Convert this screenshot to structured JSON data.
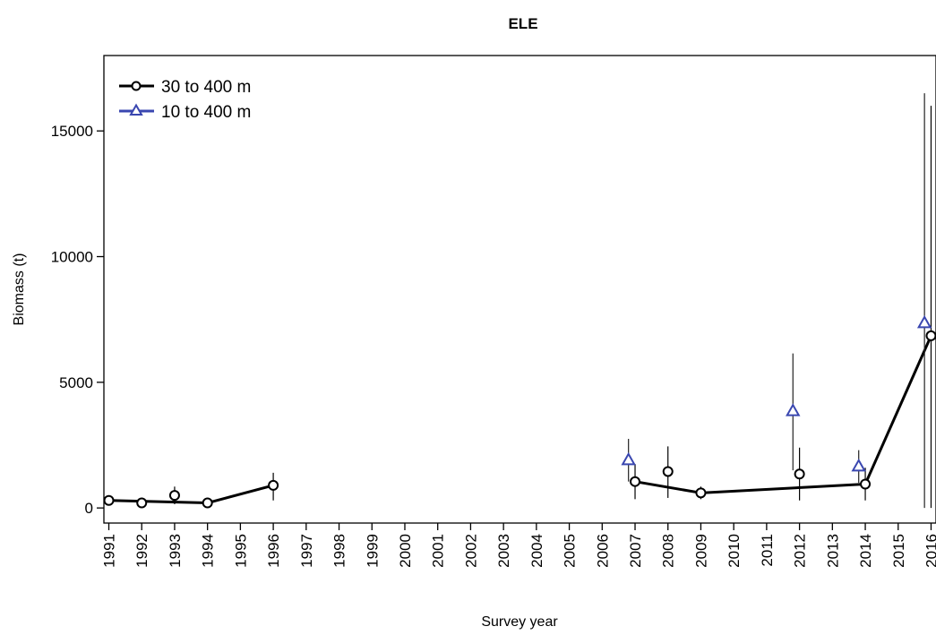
{
  "chart_data": {
    "type": "line",
    "title": "ELE",
    "xlabel": "Survey year",
    "ylabel": "Biomass (t)",
    "ylim": [
      -600,
      18000
    ],
    "xlim": [
      1990.85,
      2016.15
    ],
    "yticks": [
      0,
      5000,
      10000,
      15000
    ],
    "ytick_labels": [
      "0",
      "5000",
      "10000",
      "15000"
    ],
    "xticks": [
      1991,
      1992,
      1993,
      1994,
      1995,
      1996,
      1997,
      1998,
      1999,
      2000,
      2001,
      2002,
      2003,
      2004,
      2005,
      2006,
      2007,
      2008,
      2009,
      2010,
      2011,
      2012,
      2013,
      2014,
      2015,
      2016
    ],
    "xtick_labels": [
      "1991",
      "1992",
      "1993",
      "1994",
      "1995",
      "1996",
      "1997",
      "1998",
      "1999",
      "2000",
      "2001",
      "2002",
      "2003",
      "2004",
      "2005",
      "2006",
      "2007",
      "2008",
      "2009",
      "2010",
      "2011",
      "2012",
      "2013",
      "2014",
      "2015",
      "2016"
    ],
    "grid": false,
    "legend_position": "top-left",
    "series": [
      {
        "name": "30 to 400 m",
        "color": "#000000",
        "marker": "circle",
        "segments": [
          [
            1991,
            1994
          ],
          [
            1994,
            1996
          ],
          [
            2007,
            2009
          ],
          [
            2009,
            2014
          ],
          [
            2014,
            2016
          ]
        ],
        "points": [
          {
            "x": 1991,
            "y": 300,
            "lo": 100,
            "hi": 500
          },
          {
            "x": 1992,
            "y": 200,
            "lo": 100,
            "hi": 300
          },
          {
            "x": 1993,
            "y": 500,
            "lo": 150,
            "hi": 850
          },
          {
            "x": 1994,
            "y": 200,
            "lo": 100,
            "hi": 300
          },
          {
            "x": 1996,
            "y": 900,
            "lo": 300,
            "hi": 1400
          },
          {
            "x": 2007,
            "y": 1050,
            "lo": 350,
            "hi": 1750
          },
          {
            "x": 2008,
            "y": 1450,
            "lo": 400,
            "hi": 2450
          },
          {
            "x": 2009,
            "y": 600,
            "lo": 350,
            "hi": 850
          },
          {
            "x": 2012,
            "y": 1350,
            "lo": 300,
            "hi": 2400
          },
          {
            "x": 2014,
            "y": 950,
            "lo": 300,
            "hi": 1600
          },
          {
            "x": 2016,
            "y": 6850,
            "lo": 0,
            "hi": 16000
          }
        ]
      },
      {
        "name": "10 to 400 m",
        "color": "#3a47b0",
        "marker": "triangle",
        "offset": -0.2,
        "points": [
          {
            "x": 2007,
            "y": 1900,
            "lo": 1050,
            "hi": 2750
          },
          {
            "x": 2012,
            "y": 3850,
            "lo": 1500,
            "hi": 6150
          },
          {
            "x": 2014,
            "y": 1650,
            "lo": 1000,
            "hi": 2300
          },
          {
            "x": 2016,
            "y": 7350,
            "lo": 0,
            "hi": 16500
          }
        ]
      }
    ]
  }
}
